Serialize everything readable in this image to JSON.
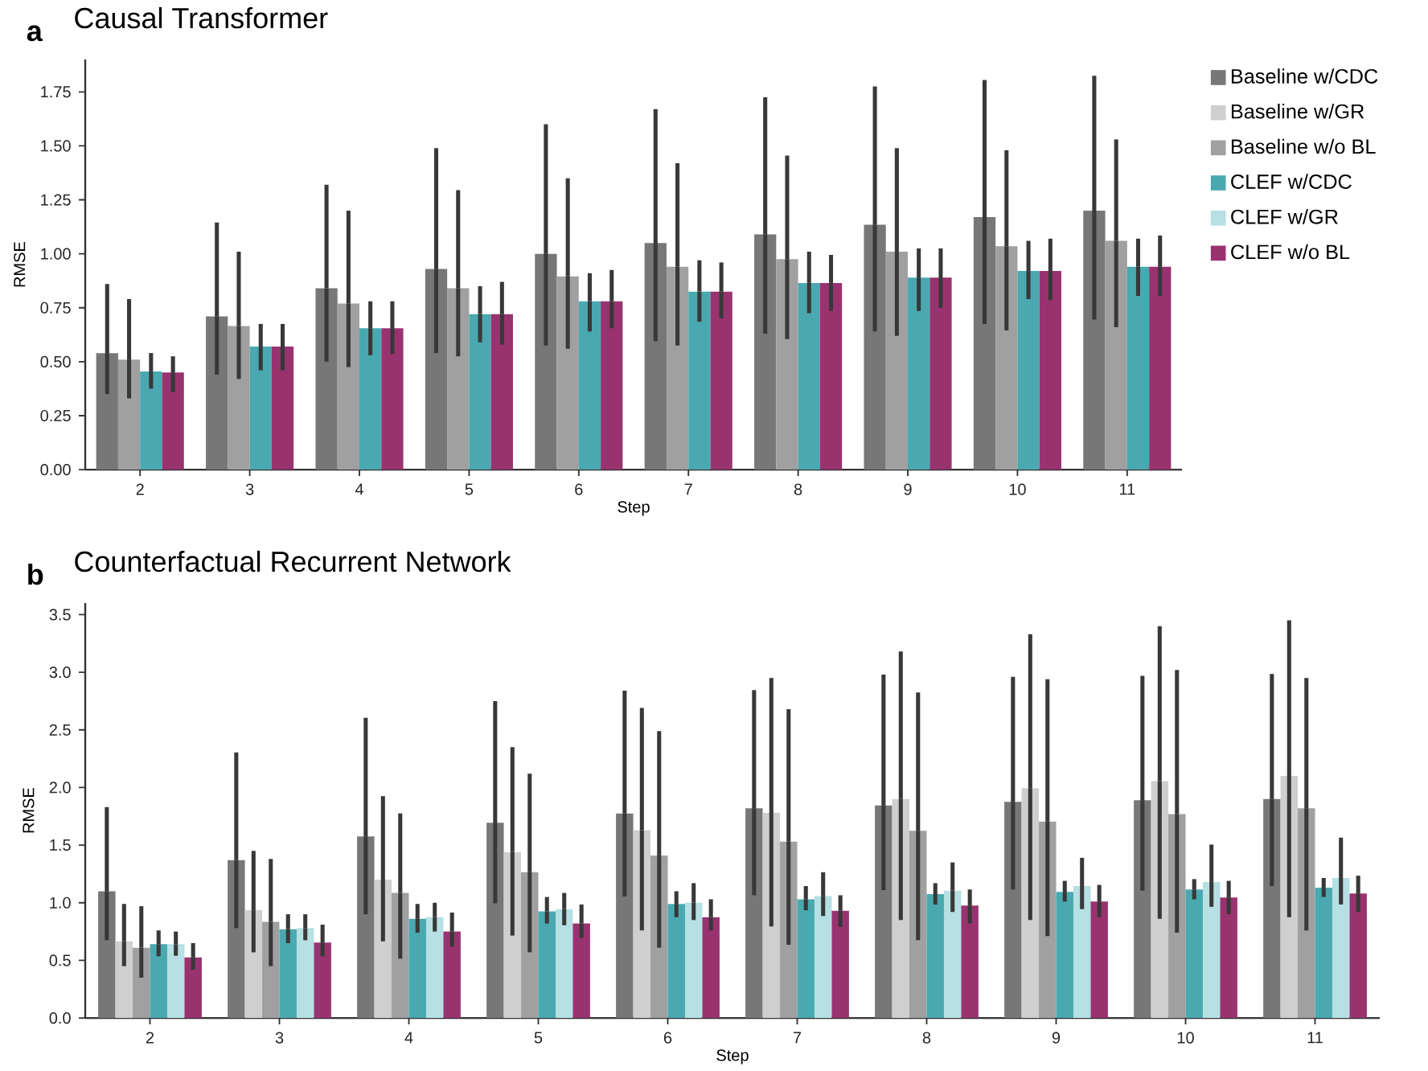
{
  "chart_data": [
    {
      "type": "bar",
      "title": "Causal Transformer",
      "annotations": [
        "a"
      ],
      "xlabel": "Step",
      "ylabel": "RMSE",
      "categories": [
        "2",
        "3",
        "4",
        "5",
        "6",
        "7",
        "8",
        "9",
        "10",
        "11"
      ],
      "ylim": [
        0,
        1.9
      ],
      "yticks": [
        {
          "value": 0,
          "label": "0.00"
        },
        {
          "value": 0.25,
          "label": "0.25"
        },
        {
          "value": 0.5,
          "label": "0.50"
        },
        {
          "value": 0.75,
          "label": "0.75"
        },
        {
          "value": 1,
          "label": "1.00"
        },
        {
          "value": 1.25,
          "label": "1.25"
        },
        {
          "value": 1.5,
          "label": "1.50"
        },
        {
          "value": 1.75,
          "label": "1.75"
        }
      ],
      "legend": "right",
      "series": [
        {
          "name": "Baseline w/CDC",
          "color": "#777777",
          "values": [
            0.54,
            0.71,
            0.84,
            0.93,
            1.0,
            1.05,
            1.09,
            1.135,
            1.17,
            1.2
          ],
          "errors": [
            [
              0.35,
              0.86
            ],
            [
              0.44,
              1.145
            ],
            [
              0.5,
              1.32
            ],
            [
              0.54,
              1.49
            ],
            [
              0.575,
              1.6
            ],
            [
              0.595,
              1.67
            ],
            [
              0.63,
              1.725
            ],
            [
              0.64,
              1.775
            ],
            [
              0.675,
              1.805
            ],
            [
              0.695,
              1.825
            ]
          ]
        },
        {
          "name": "Baseline w/GR",
          "color": "#cfcfcf",
          "values": [
            null,
            null,
            null,
            null,
            null,
            null,
            null,
            null,
            null,
            null
          ]
        },
        {
          "name": "Baseline w/o BL",
          "color": "#a0a0a0",
          "values": [
            0.51,
            0.665,
            0.77,
            0.84,
            0.895,
            0.94,
            0.975,
            1.01,
            1.035,
            1.06
          ],
          "errors": [
            [
              0.33,
              0.79
            ],
            [
              0.42,
              1.01
            ],
            [
              0.475,
              1.2
            ],
            [
              0.525,
              1.295
            ],
            [
              0.56,
              1.35
            ],
            [
              0.575,
              1.42
            ],
            [
              0.605,
              1.455
            ],
            [
              0.62,
              1.49
            ],
            [
              0.645,
              1.48
            ],
            [
              0.66,
              1.53
            ]
          ]
        },
        {
          "name": "CLEF w/CDC",
          "color": "#4aa9b0",
          "values": [
            0.455,
            0.57,
            0.655,
            0.72,
            0.78,
            0.825,
            0.865,
            0.89,
            0.92,
            0.94
          ],
          "errors": [
            [
              0.375,
              0.54
            ],
            [
              0.46,
              0.675
            ],
            [
              0.53,
              0.78
            ],
            [
              0.59,
              0.85
            ],
            [
              0.64,
              0.91
            ],
            [
              0.685,
              0.97
            ],
            [
              0.725,
              1.01
            ],
            [
              0.735,
              1.025
            ],
            [
              0.79,
              1.06
            ],
            [
              0.805,
              1.07
            ]
          ]
        },
        {
          "name": "CLEF w/GR",
          "color": "#b6e0e3",
          "values": [
            null,
            null,
            null,
            null,
            null,
            null,
            null,
            null,
            null,
            null
          ]
        },
        {
          "name": "CLEF w/o BL",
          "color": "#993370",
          "values": [
            0.45,
            0.57,
            0.655,
            0.72,
            0.78,
            0.825,
            0.865,
            0.89,
            0.92,
            0.94
          ],
          "errors": [
            [
              0.36,
              0.525
            ],
            [
              0.46,
              0.675
            ],
            [
              0.535,
              0.78
            ],
            [
              0.58,
              0.87
            ],
            [
              0.655,
              0.925
            ],
            [
              0.7,
              0.96
            ],
            [
              0.735,
              0.995
            ],
            [
              0.75,
              1.025
            ],
            [
              0.785,
              1.07
            ],
            [
              0.805,
              1.085
            ]
          ]
        }
      ]
    },
    {
      "type": "bar",
      "title": "Counterfactual Recurrent Network",
      "annotations": [
        "b"
      ],
      "xlabel": "Step",
      "ylabel": "RMSE",
      "categories": [
        "2",
        "3",
        "4",
        "5",
        "6",
        "7",
        "8",
        "9",
        "10",
        "11"
      ],
      "ylim": [
        0,
        3.6
      ],
      "yticks": [
        {
          "value": 0,
          "label": "0.0"
        },
        {
          "value": 0.5,
          "label": "0.5"
        },
        {
          "value": 1,
          "label": "1.0"
        },
        {
          "value": 1.5,
          "label": "1.5"
        },
        {
          "value": 2,
          "label": "2.0"
        },
        {
          "value": 2.5,
          "label": "2.5"
        },
        {
          "value": 3,
          "label": "3.0"
        },
        {
          "value": 3.5,
          "label": "3.5"
        }
      ],
      "series": [
        {
          "color": "#777777",
          "values": [
            1.1,
            1.37,
            1.575,
            1.695,
            1.775,
            1.82,
            1.845,
            1.875,
            1.89,
            1.9
          ],
          "errors": [
            [
              0.675,
              1.83
            ],
            [
              0.78,
              2.305
            ],
            [
              0.9,
              2.605
            ],
            [
              0.995,
              2.75
            ],
            [
              1.055,
              2.84
            ],
            [
              1.065,
              2.845
            ],
            [
              1.11,
              2.98
            ],
            [
              1.115,
              2.96
            ],
            [
              1.105,
              2.97
            ],
            [
              1.145,
              2.985
            ]
          ]
        },
        {
          "color": "#cfcfcf",
          "values": [
            0.665,
            0.935,
            1.2,
            1.44,
            1.63,
            1.78,
            1.9,
            1.995,
            2.055,
            2.1
          ],
          "errors": [
            [
              0.45,
              0.99
            ],
            [
              0.57,
              1.45
            ],
            [
              0.665,
              1.925
            ],
            [
              0.715,
              2.35
            ],
            [
              0.76,
              2.69
            ],
            [
              0.795,
              2.95
            ],
            [
              0.85,
              3.18
            ],
            [
              0.85,
              3.33
            ],
            [
              0.86,
              3.4
            ],
            [
              0.875,
              3.45
            ]
          ]
        },
        {
          "color": "#a0a0a0",
          "values": [
            0.61,
            0.835,
            1.085,
            1.265,
            1.41,
            1.53,
            1.625,
            1.705,
            1.77,
            1.82
          ],
          "errors": [
            [
              0.35,
              0.97
            ],
            [
              0.45,
              1.38
            ],
            [
              0.515,
              1.775
            ],
            [
              0.57,
              2.12
            ],
            [
              0.61,
              2.49
            ],
            [
              0.635,
              2.68
            ],
            [
              0.675,
              2.825
            ],
            [
              0.71,
              2.94
            ],
            [
              0.74,
              3.02
            ],
            [
              0.76,
              2.95
            ]
          ]
        },
        {
          "color": "#4aa9b0",
          "values": [
            0.64,
            0.77,
            0.86,
            0.925,
            0.99,
            1.03,
            1.075,
            1.095,
            1.115,
            1.13
          ],
          "errors": [
            [
              0.535,
              0.76
            ],
            [
              0.65,
              0.9
            ],
            [
              0.74,
              0.99
            ],
            [
              0.82,
              1.05
            ],
            [
              0.875,
              1.1
            ],
            [
              0.935,
              1.145
            ],
            [
              0.985,
              1.17
            ],
            [
              1.01,
              1.19
            ],
            [
              1.03,
              1.205
            ],
            [
              1.05,
              1.215
            ]
          ]
        },
        {
          "color": "#b6e0e3",
          "values": [
            0.64,
            0.78,
            0.875,
            0.945,
            1.0,
            1.06,
            1.105,
            1.145,
            1.18,
            1.215
          ],
          "errors": [
            [
              0.54,
              0.75
            ],
            [
              0.675,
              0.9
            ],
            [
              0.75,
              1.0
            ],
            [
              0.805,
              1.085
            ],
            [
              0.85,
              1.17
            ],
            [
              0.885,
              1.265
            ],
            [
              0.92,
              1.35
            ],
            [
              0.945,
              1.39
            ],
            [
              0.965,
              1.505
            ],
            [
              0.985,
              1.565
            ]
          ]
        },
        {
          "color": "#993370",
          "values": [
            0.525,
            0.655,
            0.75,
            0.82,
            0.875,
            0.93,
            0.975,
            1.01,
            1.045,
            1.08
          ],
          "errors": [
            [
              0.42,
              0.65
            ],
            [
              0.535,
              0.81
            ],
            [
              0.62,
              0.915
            ],
            [
              0.695,
              0.985
            ],
            [
              0.76,
              1.03
            ],
            [
              0.79,
              1.065
            ],
            [
              0.82,
              1.115
            ],
            [
              0.875,
              1.155
            ],
            [
              0.9,
              1.19
            ],
            [
              0.92,
              1.235
            ]
          ]
        }
      ]
    }
  ]
}
